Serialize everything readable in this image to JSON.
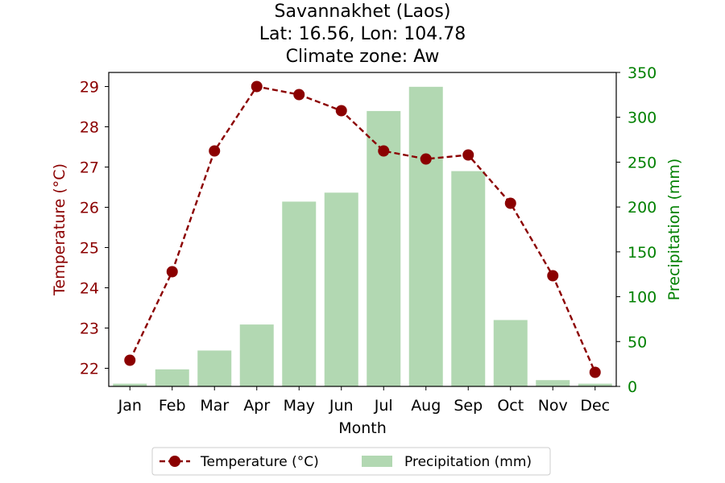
{
  "title_lines": [
    "Savannakhet (Laos)",
    "Lat: 16.56, Lon: 104.78",
    "Climate zone: Aw"
  ],
  "colors": {
    "temperature": "#8b0000",
    "precipitation": "#b2d8b2",
    "precip_axis": "#008000",
    "axis": "#000000"
  },
  "chart_data": {
    "type": "bar+line",
    "categories": [
      "Jan",
      "Feb",
      "Mar",
      "Apr",
      "May",
      "Jun",
      "Jul",
      "Aug",
      "Sep",
      "Oct",
      "Nov",
      "Dec"
    ],
    "xlabel": "Month",
    "series": [
      {
        "name": "Temperature (°C)",
        "type": "line",
        "axis": "left",
        "style": "dashed with circle markers",
        "values": [
          22.2,
          24.4,
          27.4,
          29.0,
          28.8,
          28.4,
          27.4,
          27.2,
          27.3,
          26.1,
          24.3,
          21.9
        ]
      },
      {
        "name": "Precipitation (mm)",
        "type": "bar",
        "axis": "right",
        "values": [
          3,
          19,
          40,
          69,
          206,
          216,
          307,
          334,
          240,
          74,
          7,
          3
        ]
      }
    ],
    "y_left": {
      "label": "Temperature (°C)",
      "ylim": [
        21.55,
        29.35
      ],
      "ticks": [
        22,
        23,
        24,
        25,
        26,
        27,
        28,
        29
      ]
    },
    "y_right": {
      "label": "Precipitation (mm)",
      "ylim": [
        0,
        350
      ],
      "ticks": [
        0,
        50,
        100,
        150,
        200,
        250,
        300,
        350
      ]
    },
    "grid": false,
    "legend_placement": "bottom-center"
  }
}
